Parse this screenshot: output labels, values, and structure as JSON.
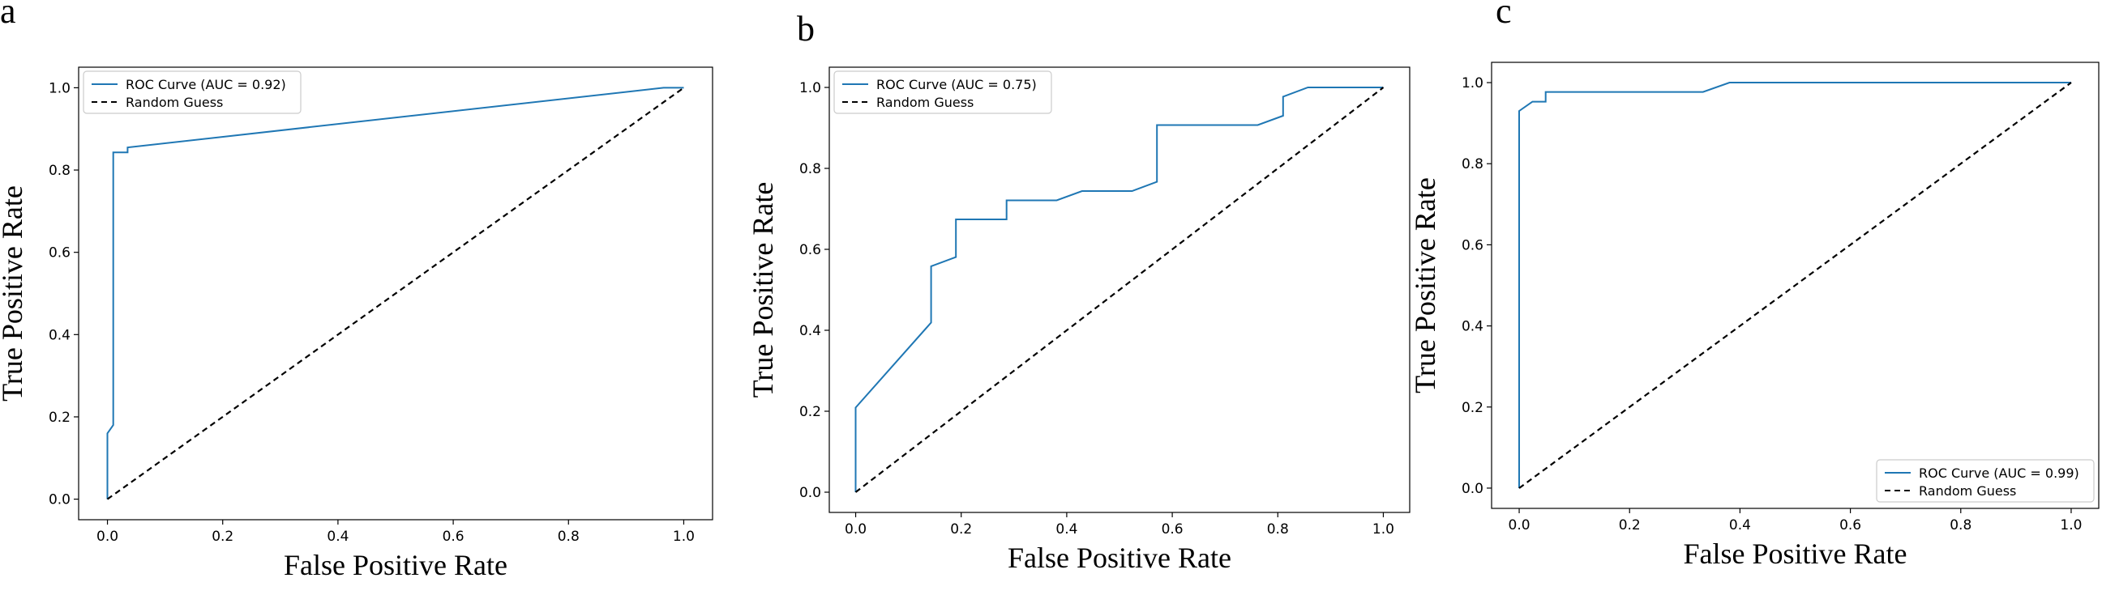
{
  "chart_data": [
    {
      "panel_label": "a",
      "type": "line",
      "xlabel": "False Positive Rate",
      "ylabel": "True Positive Rate",
      "xlim": [
        -0.05,
        1.05
      ],
      "ylim": [
        -0.05,
        1.05
      ],
      "xticks": [
        "0.0",
        "0.2",
        "0.4",
        "0.6",
        "0.8",
        "1.0"
      ],
      "yticks": [
        "0.0",
        "0.2",
        "0.4",
        "0.6",
        "0.8",
        "1.0"
      ],
      "legend_position": "top-left",
      "series": [
        {
          "name": "ROC Curve (AUC = 0.92)",
          "style": "solid",
          "color": "#1f77b4",
          "x": [
            0.0,
            0.0,
            0.01,
            0.01,
            0.035,
            0.035,
            0.965,
            1.0
          ],
          "y": [
            0.0,
            0.16,
            0.18,
            0.843,
            0.843,
            0.855,
            1.0,
            1.0
          ]
        },
        {
          "name": "Random Guess",
          "style": "dashed",
          "color": "#000000",
          "x": [
            0.0,
            1.0
          ],
          "y": [
            0.0,
            1.0
          ]
        }
      ]
    },
    {
      "panel_label": "b",
      "type": "line",
      "xlabel": "False Positive Rate",
      "ylabel": "True Positive Rate",
      "xlim": [
        -0.05,
        1.05
      ],
      "ylim": [
        -0.05,
        1.05
      ],
      "xticks": [
        "0.0",
        "0.2",
        "0.4",
        "0.6",
        "0.8",
        "1.0"
      ],
      "yticks": [
        "0.0",
        "0.2",
        "0.4",
        "0.6",
        "0.8",
        "1.0"
      ],
      "legend_position": "top-left",
      "series": [
        {
          "name": "ROC Curve (AUC = 0.75)",
          "style": "solid",
          "color": "#1f77b4",
          "x": [
            0.0,
            0.0,
            0.143,
            0.143,
            0.19,
            0.19,
            0.286,
            0.286,
            0.381,
            0.429,
            0.524,
            0.571,
            0.571,
            0.762,
            0.81,
            0.81,
            0.857,
            1.0
          ],
          "y": [
            0.0,
            0.209,
            0.419,
            0.558,
            0.581,
            0.674,
            0.674,
            0.721,
            0.721,
            0.744,
            0.744,
            0.767,
            0.907,
            0.907,
            0.93,
            0.977,
            1.0,
            1.0
          ]
        },
        {
          "name": "Random Guess",
          "style": "dashed",
          "color": "#000000",
          "x": [
            0.0,
            1.0
          ],
          "y": [
            0.0,
            1.0
          ]
        }
      ]
    },
    {
      "panel_label": "c",
      "type": "line",
      "xlabel": "False Positive Rate",
      "ylabel": "True Positive Rate",
      "xlim": [
        -0.05,
        1.05
      ],
      "ylim": [
        -0.05,
        1.05
      ],
      "xticks": [
        "0.0",
        "0.2",
        "0.4",
        "0.6",
        "0.8",
        "1.0"
      ],
      "yticks": [
        "0.0",
        "0.2",
        "0.4",
        "0.6",
        "0.8",
        "1.0"
      ],
      "legend_position": "bottom-right",
      "series": [
        {
          "name": "ROC Curve (AUC = 0.99)",
          "style": "solid",
          "color": "#1f77b4",
          "x": [
            0.0,
            0.0,
            0.024,
            0.048,
            0.048,
            0.333,
            0.381,
            1.0
          ],
          "y": [
            0.0,
            0.93,
            0.953,
            0.953,
            0.977,
            0.977,
            1.0,
            1.0
          ]
        },
        {
          "name": "Random Guess",
          "style": "dashed",
          "color": "#000000",
          "x": [
            0.0,
            1.0
          ],
          "y": [
            0.0,
            1.0
          ]
        }
      ]
    }
  ]
}
